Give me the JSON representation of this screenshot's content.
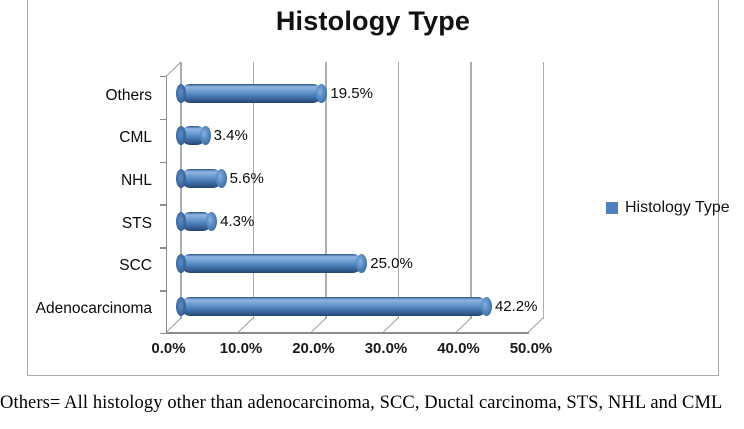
{
  "chart_data": {
    "type": "bar",
    "orientation": "horizontal",
    "style": "3d-cylinder",
    "title": "Histology Type",
    "categories": [
      "Others",
      "CML",
      "NHL",
      "STS",
      "SCC",
      "Adenocarcinoma"
    ],
    "values": [
      19.5,
      3.4,
      5.6,
      4.3,
      25.0,
      42.2
    ],
    "data_labels": [
      "19.5%",
      "3.4%",
      "5.6%",
      "4.3%",
      "25.0%",
      "42.2%"
    ],
    "category_order": "top-to-bottom",
    "x_ticks": [
      "0.0%",
      "10.0%",
      "20.0%",
      "30.0%",
      "40.0%",
      "50.0%"
    ],
    "xlim": [
      0,
      50
    ],
    "grid": true,
    "legend": {
      "label": "Histology Type",
      "color": "#4f81bd",
      "position": "right"
    }
  },
  "note": "Others= All histology other than adenocarcinoma, SCC, Ductal carcinoma, STS, NHL and CML",
  "colors": {
    "bar_main": "#4f81bd",
    "bar_highlight": "#8fb6e4",
    "bar_shadow": "#23456c",
    "gridline": "#adadad",
    "axis": "#8c8c8c",
    "frame_border": "#ababab",
    "text": "#000000"
  }
}
